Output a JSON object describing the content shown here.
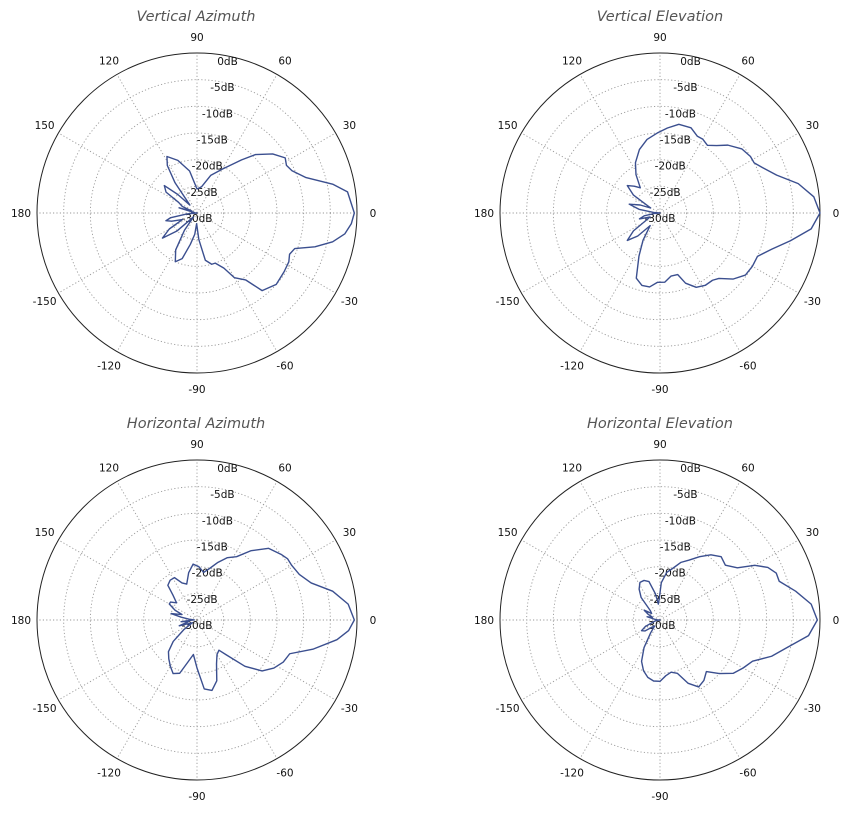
{
  "chart_data": [
    {
      "type": "polar-line",
      "title": "Vertical Azimuth",
      "angle_ticks": [
        "0",
        "30",
        "60",
        "90",
        "120",
        "150",
        "180",
        "-150",
        "-120",
        "-90",
        "-60",
        "-30"
      ],
      "radial_ticks": [
        "0dB",
        "-5dB",
        "-10dB",
        "-15dB",
        "-20dB",
        "-25dB",
        "-30dB"
      ],
      "rlim": [
        -30,
        0
      ],
      "grid": true,
      "color": "#3b4f8f",
      "theta": [
        0,
        8,
        12,
        18,
        24,
        28,
        32,
        38,
        45,
        50,
        60,
        70,
        80,
        90,
        100,
        110,
        118,
        122,
        126,
        132,
        136,
        140,
        146,
        150,
        156,
        160,
        164,
        170,
        174,
        176,
        180,
        184,
        186,
        190,
        194,
        198,
        204,
        210,
        216,
        222,
        228,
        234,
        240,
        246,
        252,
        258,
        264,
        268,
        274,
        280,
        286,
        290,
        296,
        300,
        306,
        310,
        318,
        326,
        332,
        336,
        340,
        344,
        348,
        352,
        356
      ],
      "r": [
        -0.5,
        -1.5,
        -4,
        -8.5,
        -10.5,
        -11,
        -10.5,
        -12,
        -14.5,
        -17,
        -20.5,
        -22.5,
        -25,
        -25.5,
        -22,
        -19.5,
        -18,
        -19.5,
        -23,
        -28,
        -25,
        -22,
        -23,
        -26,
        -27,
        -29,
        -26.5,
        -29.5,
        -29,
        -29.5,
        -30,
        -29,
        -28,
        -25,
        -24,
        -25,
        -27,
        -24,
        -22,
        -25,
        -29,
        -26,
        -22,
        -20,
        -21,
        -24,
        -26,
        -28,
        -25,
        -21,
        -20,
        -20,
        -18.5,
        -16,
        -14.5,
        -11,
        -10,
        -10.3,
        -10.5,
        -11,
        -10.5,
        -7,
        -4,
        -2,
        -1
      ]
    },
    {
      "type": "polar-line",
      "title": "Vertical Elevation",
      "angle_ticks": [
        "0",
        "30",
        "60",
        "90",
        "120",
        "150",
        "180",
        "-150",
        "-120",
        "-90",
        "-60",
        "-30"
      ],
      "radial_ticks": [
        "0dB",
        "-5dB",
        "-10dB",
        "-15dB",
        "-20dB",
        "-25dB",
        "-30dB"
      ],
      "rlim": [
        -30,
        0
      ],
      "grid": true,
      "color": "#3b4f8f",
      "theta": [
        0,
        6,
        12,
        18,
        24,
        28,
        32,
        38,
        45,
        50,
        55,
        60,
        64,
        70,
        78,
        85,
        92,
        100,
        108,
        116,
        122,
        128,
        134,
        140,
        146,
        152,
        158,
        164,
        170,
        176,
        180,
        184,
        190,
        196,
        202,
        208,
        214,
        220,
        226,
        232,
        238,
        244,
        250,
        256,
        262,
        268,
        274,
        280,
        286,
        290,
        296,
        302,
        308,
        312,
        318,
        324,
        330,
        336,
        342,
        348,
        354
      ],
      "r": [
        0,
        -1,
        -3.5,
        -7,
        -9,
        -10,
        -10,
        -10.5,
        -12,
        -13.5,
        -14.5,
        -14,
        -14,
        -13,
        -13,
        -14,
        -15,
        -16,
        -17.5,
        -19.5,
        -21.5,
        -24,
        -23,
        -22,
        -24,
        -28,
        -26,
        -24,
        -26,
        -29,
        -30,
        -29,
        -27,
        -26,
        -28,
        -27,
        -24,
        -22,
        -24,
        -27,
        -24,
        -21,
        -17,
        -16,
        -16,
        -17,
        -17,
        -18,
        -18,
        -16,
        -14.5,
        -14,
        -14,
        -13.5,
        -11.5,
        -10.2,
        -10,
        -10,
        -8,
        -5,
        -1.5
      ]
    },
    {
      "type": "polar-line",
      "title": "Horizontal Azimuth",
      "angle_ticks": [
        "0",
        "30",
        "60",
        "90",
        "120",
        "150",
        "180",
        "-150",
        "-120",
        "-90",
        "-60",
        "-30"
      ],
      "radial_ticks": [
        "0dB",
        "-5dB",
        "-10dB",
        "-15dB",
        "-20dB",
        "-25dB",
        "-30dB"
      ],
      "rlim": [
        -30,
        0
      ],
      "grid": true,
      "color": "#3b4f8f",
      "theta": [
        0,
        6,
        12,
        18,
        24,
        30,
        34,
        38,
        45,
        52,
        58,
        64,
        70,
        76,
        82,
        88,
        94,
        100,
        106,
        112,
        118,
        124,
        130,
        134,
        140,
        146,
        150,
        156,
        160,
        166,
        170,
        174,
        178,
        182,
        186,
        190,
        194,
        198,
        202,
        206,
        210,
        216,
        222,
        228,
        234,
        240,
        246,
        252,
        258,
        264,
        270,
        276,
        282,
        288,
        294,
        300,
        306,
        310,
        316,
        322,
        328,
        334,
        340,
        346,
        352,
        356
      ],
      "r": [
        -0.5,
        -1.5,
        -4,
        -7.5,
        -9,
        -9.5,
        -9.5,
        -10,
        -11,
        -13.5,
        -16,
        -17,
        -18.5,
        -20,
        -21,
        -20,
        -19.5,
        -21,
        -23,
        -22.5,
        -21,
        -21,
        -21.5,
        -23.5,
        -25,
        -24,
        -24,
        -25.5,
        -27,
        -25,
        -27,
        -28.5,
        -29.5,
        -29,
        -27,
        -28.5,
        -28,
        -26.5,
        -28,
        -28.5,
        -29,
        -27,
        -24,
        -22,
        -21,
        -20,
        -19,
        -19.5,
        -22,
        -23.5,
        -21,
        -17,
        -16.5,
        -18,
        -21,
        -22.5,
        -23,
        -21.5,
        -17.5,
        -14.5,
        -13,
        -12,
        -11.5,
        -7.5,
        -3.5,
        -1.5
      ]
    },
    {
      "type": "polar-line",
      "title": "Horizontal Elevation",
      "angle_ticks": [
        "0",
        "30",
        "60",
        "90",
        "120",
        "150",
        "180",
        "-150",
        "-120",
        "-90",
        "-60",
        "-30"
      ],
      "radial_ticks": [
        "0dB",
        "-5dB",
        "-10dB",
        "-15dB",
        "-20dB",
        "-25dB",
        "-30dB"
      ],
      "rlim": [
        -30,
        0
      ],
      "grid": true,
      "color": "#3b4f8f",
      "theta": [
        0,
        6,
        12,
        18,
        22,
        26,
        30,
        34,
        40,
        46,
        52,
        58,
        64,
        70,
        76,
        82,
        88,
        92,
        96,
        100,
        106,
        112,
        118,
        124,
        130,
        136,
        142,
        148,
        154,
        160,
        166,
        172,
        176,
        180,
        186,
        192,
        198,
        204,
        210,
        216,
        222,
        228,
        234,
        240,
        246,
        252,
        258,
        264,
        270,
        276,
        282,
        288,
        294,
        300,
        306,
        312,
        318,
        324,
        330,
        336,
        342,
        348,
        354
      ],
      "r": [
        -0.5,
        -1.5,
        -4,
        -6.5,
        -6.5,
        -7.5,
        -9.5,
        -12.5,
        -14,
        -13.5,
        -14.5,
        -16,
        -17.5,
        -18.5,
        -20,
        -21,
        -23,
        -26,
        -27,
        -25,
        -22.5,
        -22,
        -22,
        -23,
        -24.5,
        -27.5,
        -28,
        -26.5,
        -27.5,
        -28.5,
        -27.5,
        -29,
        -29.5,
        -30,
        -29.5,
        -29,
        -28.5,
        -27,
        -26,
        -26.5,
        -28,
        -28.5,
        -27,
        -24,
        -21.5,
        -20,
        -19,
        -18.5,
        -18.5,
        -19.5,
        -20,
        -19.5,
        -17,
        -15.5,
        -16,
        -17,
        -15,
        -13,
        -12,
        -11,
        -8,
        -5.5,
        -2
      ]
    }
  ]
}
